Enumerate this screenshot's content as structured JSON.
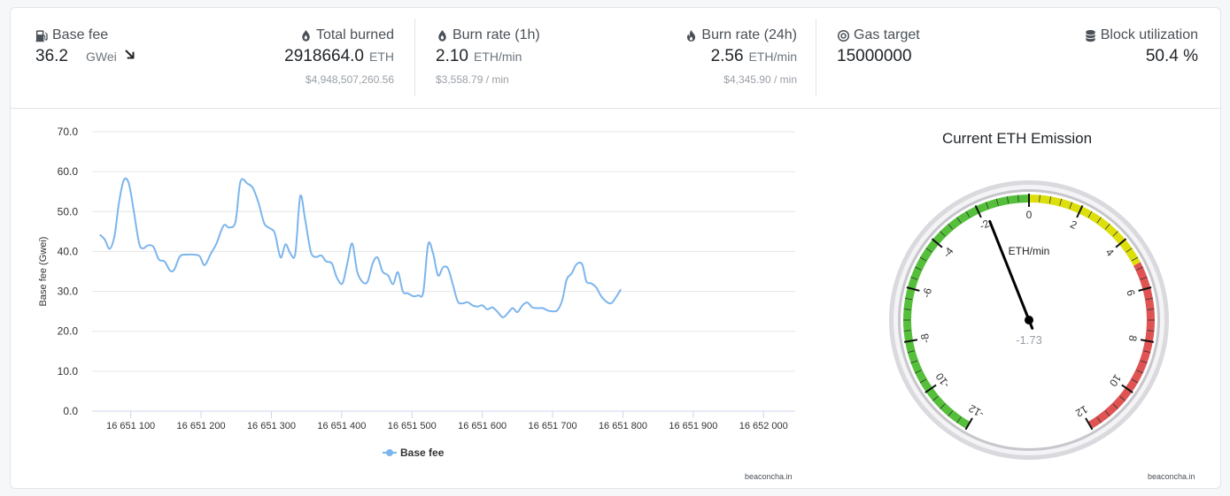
{
  "stats": {
    "base_fee": {
      "label": "Base fee",
      "value": "36.2",
      "unit": "GWei",
      "icon": "gas-pump-icon",
      "trend": "down"
    },
    "total_burned": {
      "label": "Total burned",
      "value": "2918664.0",
      "unit": "ETH",
      "sub": "$4,948,507,260.56",
      "icon": "fire-drop-icon"
    },
    "burn_rate_1h": {
      "label": "Burn rate (1h)",
      "value": "2.10",
      "unit": "ETH/min",
      "sub": "$3,558.79 / min",
      "icon": "fire-drop-icon"
    },
    "burn_rate_24h": {
      "label": "Burn rate (24h)",
      "value": "2.56",
      "unit": "ETH/min",
      "sub": "$4,345.90 / min",
      "icon": "flame-icon"
    },
    "gas_target": {
      "label": "Gas target",
      "value": "15000000",
      "icon": "target-icon"
    },
    "block_utilization": {
      "label": "Block utilization",
      "value": "50.4 %",
      "icon": "database-icon"
    }
  },
  "credits": {
    "chart": "beaconcha.in",
    "gauge": "beaconcha.in"
  },
  "chart_data": [
    {
      "type": "line",
      "ylabel": "Base fee (Gwei)",
      "ylim": [
        0,
        70
      ],
      "yticks": [
        "0.0",
        "10.0",
        "20.0",
        "30.0",
        "40.0",
        "50.0",
        "60.0",
        "70.0"
      ],
      "xlim": [
        16651045,
        16652045
      ],
      "xticks": [
        {
          "value": 16651100,
          "label": "16 651 100"
        },
        {
          "value": 16651200,
          "label": "16 651 200"
        },
        {
          "value": 16651300,
          "label": "16 651 300"
        },
        {
          "value": 16651400,
          "label": "16 651 400"
        },
        {
          "value": 16651500,
          "label": "16 651 500"
        },
        {
          "value": 16651600,
          "label": "16 651 600"
        },
        {
          "value": 16651700,
          "label": "16 651 700"
        },
        {
          "value": 16651800,
          "label": "16 651 800"
        },
        {
          "value": 16651900,
          "label": "16 651 900"
        },
        {
          "value": 16652000,
          "label": "16 652 000"
        }
      ],
      "legend": "bottom-center",
      "grid": true,
      "color": "#7cb5ec",
      "series": [
        {
          "name": "Base fee",
          "points": [
            [
              16651056,
              44.2
            ],
            [
              16651063,
              43.0
            ],
            [
              16651070,
              40.7
            ],
            [
              16651077,
              44.0
            ],
            [
              16651083,
              52.0
            ],
            [
              16651090,
              57.8
            ],
            [
              16651097,
              57.2
            ],
            [
              16651104,
              50.5
            ],
            [
              16651112,
              42.0
            ],
            [
              16651118,
              40.8
            ],
            [
              16651124,
              41.5
            ],
            [
              16651132,
              41.2
            ],
            [
              16651140,
              38.0
            ],
            [
              16651148,
              37.5
            ],
            [
              16651156,
              35.2
            ],
            [
              16651162,
              35.5
            ],
            [
              16651170,
              38.8
            ],
            [
              16651180,
              39.2
            ],
            [
              16651190,
              39.2
            ],
            [
              16651198,
              38.8
            ],
            [
              16651205,
              36.6
            ],
            [
              16651214,
              39.5
            ],
            [
              16651222,
              42.0
            ],
            [
              16651232,
              46.5
            ],
            [
              16651240,
              46.0
            ],
            [
              16651249,
              47.5
            ],
            [
              16651256,
              57.5
            ],
            [
              16651266,
              57.0
            ],
            [
              16651274,
              55.8
            ],
            [
              16651282,
              52.0
            ],
            [
              16651290,
              47.0
            ],
            [
              16651298,
              45.8
            ],
            [
              16651305,
              44.5
            ],
            [
              16651313,
              38.5
            ],
            [
              16651320,
              41.8
            ],
            [
              16651327,
              39.5
            ],
            [
              16651334,
              39.5
            ],
            [
              16651341,
              53.8
            ],
            [
              16651348,
              48.0
            ],
            [
              16651356,
              40.0
            ],
            [
              16651363,
              38.6
            ],
            [
              16651371,
              39.0
            ],
            [
              16651378,
              37.5
            ],
            [
              16651386,
              37.0
            ],
            [
              16651393,
              33.5
            ],
            [
              16651401,
              32.0
            ],
            [
              16651408,
              37.0
            ],
            [
              16651415,
              42.0
            ],
            [
              16651422,
              35.0
            ],
            [
              16651430,
              32.3
            ],
            [
              16651437,
              32.5
            ],
            [
              16651444,
              37.0
            ],
            [
              16651451,
              38.5
            ],
            [
              16651458,
              35.0
            ],
            [
              16651466,
              34.0
            ],
            [
              16651473,
              31.8
            ],
            [
              16651480,
              34.8
            ],
            [
              16651487,
              30.0
            ],
            [
              16651494,
              29.5
            ],
            [
              16651502,
              28.8
            ],
            [
              16651509,
              29.0
            ],
            [
              16651516,
              29.8
            ],
            [
              16651523,
              41.8
            ],
            [
              16651530,
              39.5
            ],
            [
              16651537,
              34.0
            ],
            [
              16651544,
              36.0
            ],
            [
              16651551,
              35.8
            ],
            [
              16651558,
              31.8
            ],
            [
              16651565,
              27.5
            ],
            [
              16651572,
              27.0
            ],
            [
              16651579,
              27.3
            ],
            [
              16651586,
              26.5
            ],
            [
              16651593,
              26.2
            ],
            [
              16651600,
              26.5
            ],
            [
              16651607,
              25.5
            ],
            [
              16651614,
              26.0
            ],
            [
              16651621,
              25.0
            ],
            [
              16651629,
              23.5
            ],
            [
              16651636,
              24.5
            ],
            [
              16651643,
              25.8
            ],
            [
              16651650,
              24.8
            ],
            [
              16651657,
              26.5
            ],
            [
              16651664,
              27.2
            ],
            [
              16651671,
              26.0
            ],
            [
              16651679,
              25.8
            ],
            [
              16651686,
              25.8
            ],
            [
              16651693,
              25.2
            ],
            [
              16651700,
              25.0
            ],
            [
              16651707,
              25.3
            ],
            [
              16651714,
              28.0
            ],
            [
              16651720,
              33.0
            ],
            [
              16651727,
              34.5
            ],
            [
              16651734,
              36.8
            ],
            [
              16651742,
              36.8
            ],
            [
              16651748,
              32.5
            ],
            [
              16651755,
              32.0
            ],
            [
              16651762,
              31.0
            ],
            [
              16651769,
              28.8
            ],
            [
              16651776,
              27.5
            ],
            [
              16651783,
              27.0
            ],
            [
              16651790,
              28.5
            ],
            [
              16651797,
              30.5
            ]
          ]
        }
      ]
    },
    {
      "type": "gauge",
      "title": "Current ETH Emission",
      "unit_label": "ETH/min",
      "value": -1.73,
      "value_label": "-1.73",
      "min": -12,
      "max": 12,
      "tick_labels": [
        "-12",
        "-10",
        "-8",
        "-6",
        "-4",
        "-2",
        "0",
        "2",
        "4",
        "6",
        "8",
        "10",
        "12"
      ],
      "bands": [
        {
          "from": -12,
          "to": 0,
          "color": "#55bf3b"
        },
        {
          "from": 0,
          "to": 5,
          "color": "#dddf0d"
        },
        {
          "from": 5,
          "to": 12,
          "color": "#df5353"
        }
      ]
    }
  ]
}
